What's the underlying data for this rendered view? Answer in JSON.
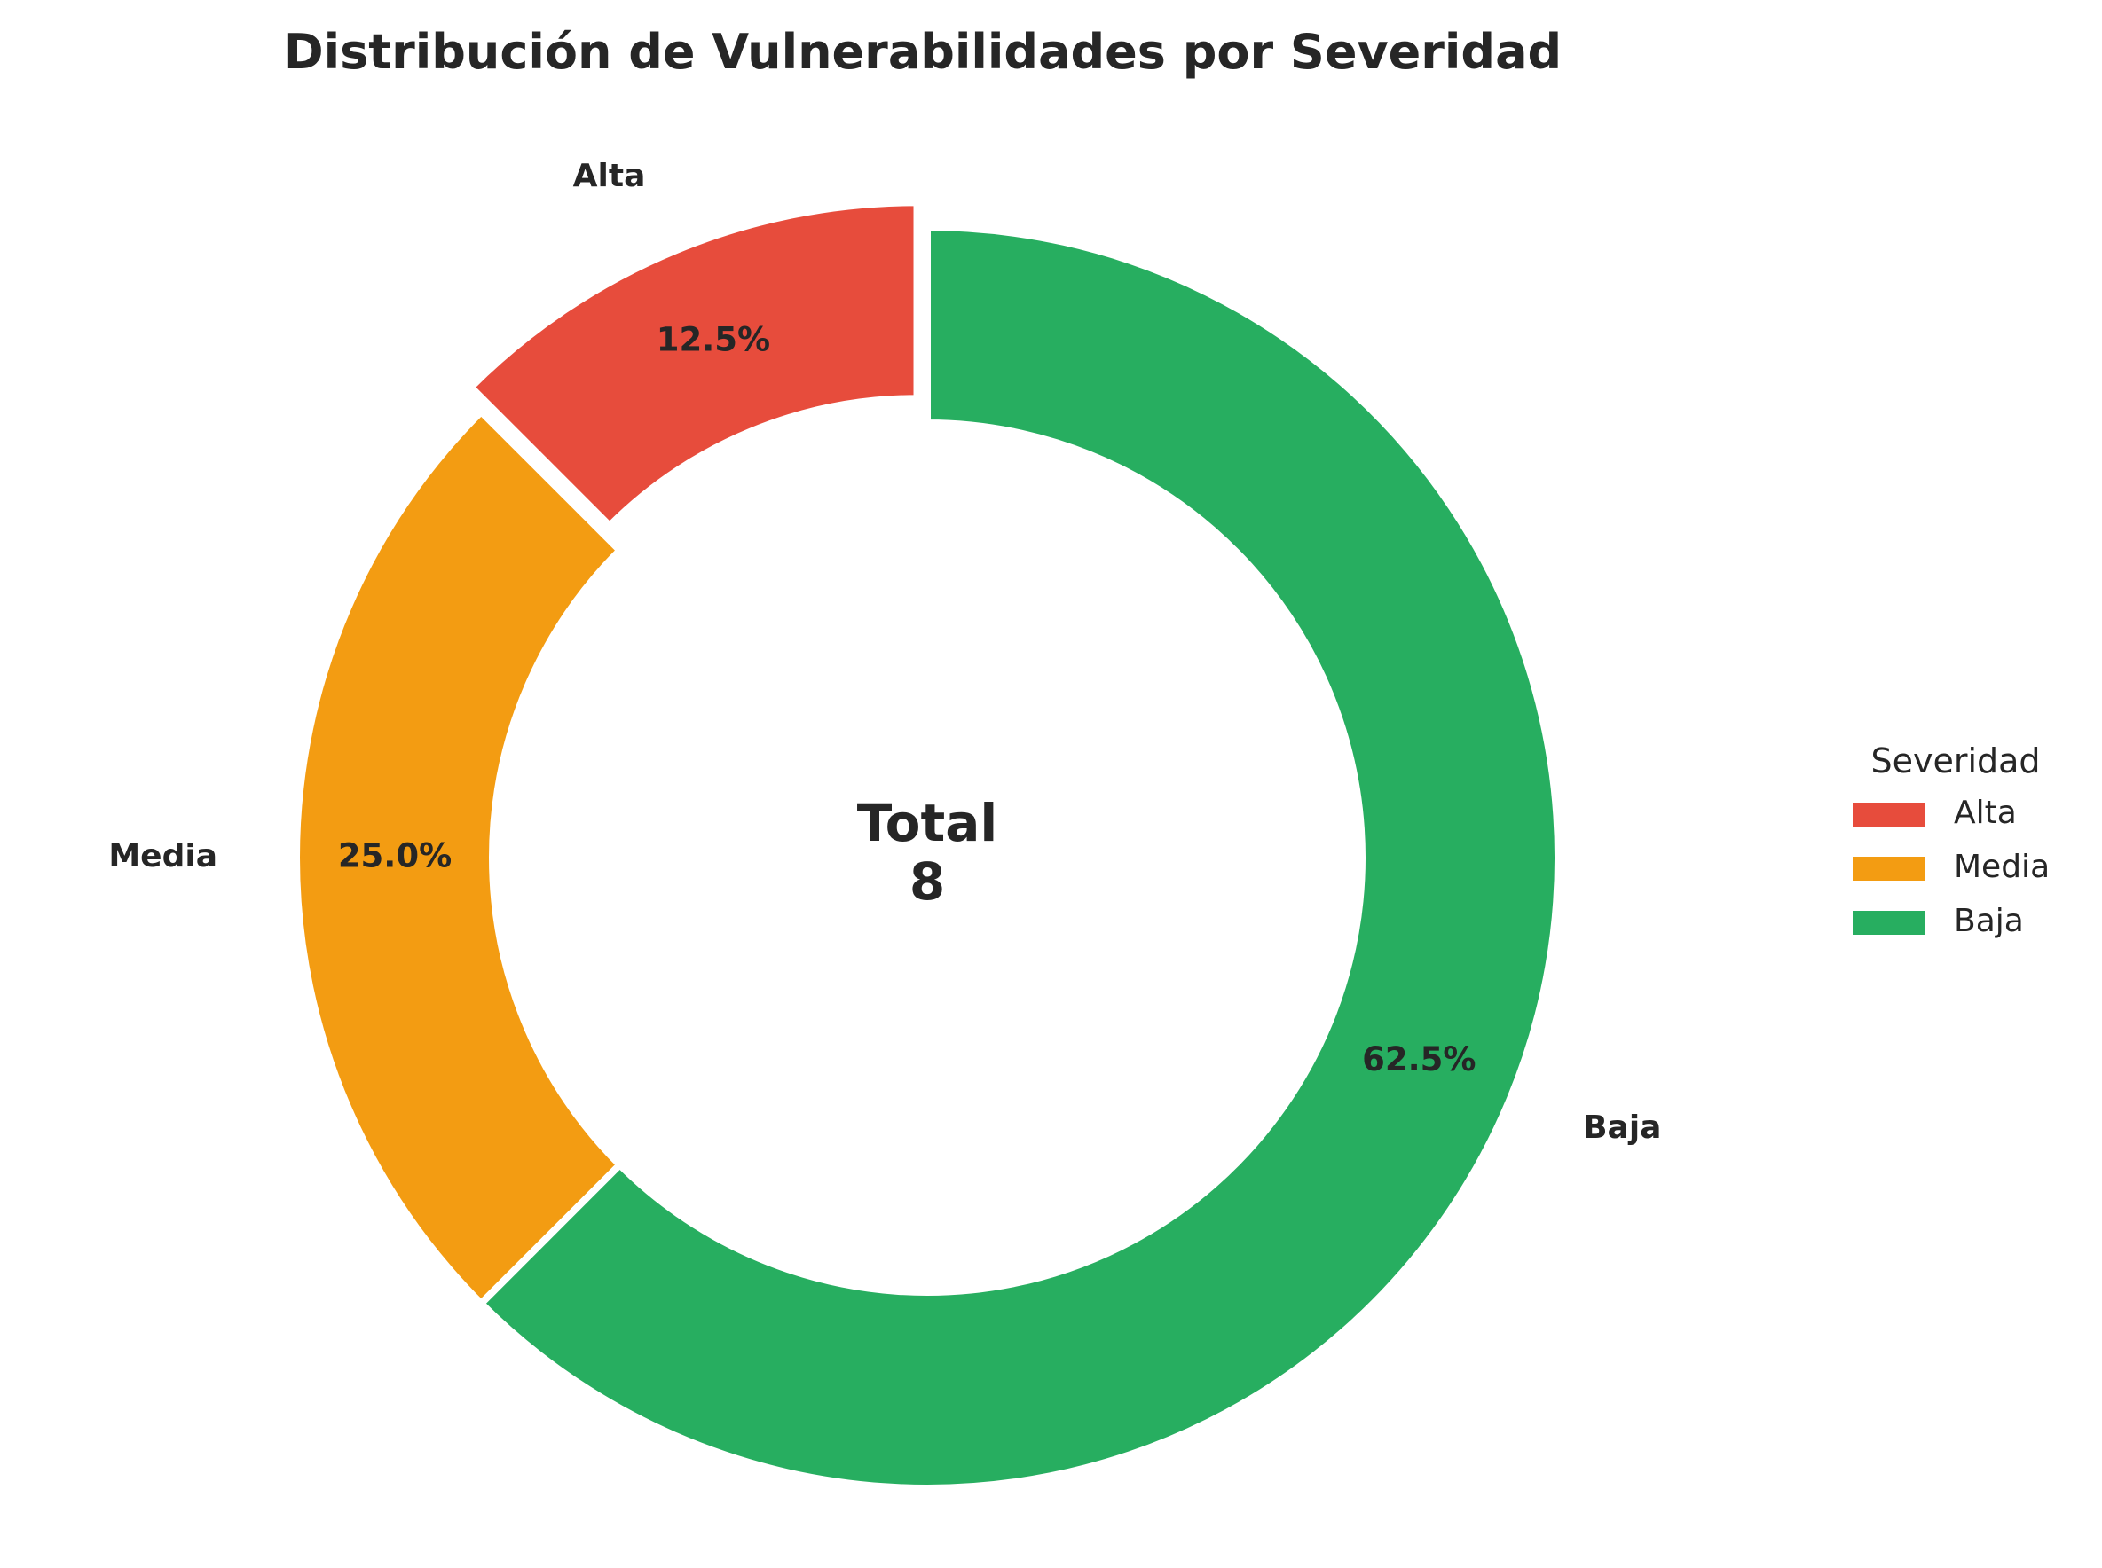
{
  "chart_data": {
    "type": "pie",
    "variant": "donut",
    "title": "Distribución de Vulnerabilidades por Severidad",
    "categories": [
      "Alta",
      "Media",
      "Baja"
    ],
    "values": [
      1,
      2,
      5
    ],
    "percent_labels": [
      "12.5%",
      "25.0%",
      "62.5%"
    ],
    "colors": [
      "#e74c3c",
      "#f39c12",
      "#27ae60"
    ],
    "center_label": {
      "line1": "Total",
      "line2": "8"
    },
    "legend": {
      "title": "Severidad",
      "placement": "right",
      "entries": [
        "Alta",
        "Media",
        "Baja"
      ]
    },
    "start_angle_deg": 90,
    "direction": "counterclockwise",
    "exploded": [
      "Alta"
    ]
  }
}
